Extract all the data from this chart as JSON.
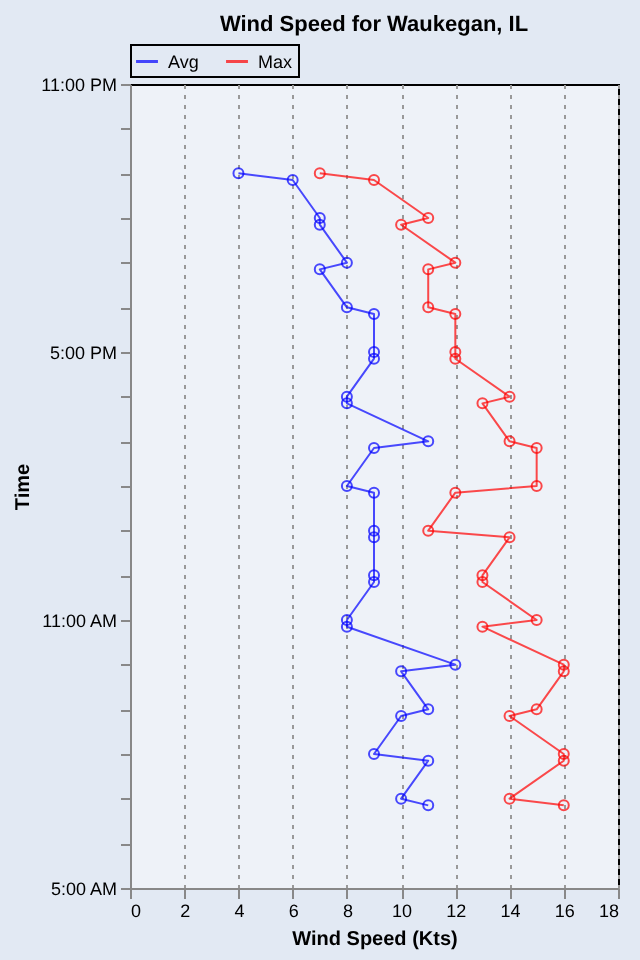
{
  "chart_data": {
    "type": "line",
    "title": "Wind Speed for Waukegan, IL",
    "xlabel": "Wind Speed (Kts)",
    "ylabel": "Time",
    "series": [
      {
        "name": "Avg",
        "color": "#0000ff",
        "x": [
          4,
          6,
          7,
          7,
          8,
          7,
          8,
          9,
          9,
          9,
          8,
          8,
          11,
          9,
          8,
          9,
          9,
          9,
          9,
          9,
          8,
          8,
          12,
          10,
          11,
          10,
          9,
          11,
          10,
          11
        ],
        "values": [
          21.0,
          20.85,
          20.0,
          19.85,
          19.0,
          18.85,
          18.0,
          17.85,
          17.0,
          16.85,
          16.0,
          15.85,
          15.0,
          14.85,
          14.0,
          13.85,
          13.0,
          12.85,
          12.0,
          11.85,
          11.0,
          10.85,
          10.0,
          9.85,
          9.0,
          8.85,
          8.0,
          7.85,
          7.0,
          6.85
        ]
      },
      {
        "name": "Max",
        "color": "#ff0000",
        "x": [
          7,
          9,
          11,
          10,
          12,
          11,
          11,
          12,
          12,
          12,
          14,
          13,
          14,
          15,
          15,
          12,
          11,
          14,
          13,
          13,
          15,
          13,
          16,
          16,
          15,
          14,
          16,
          16,
          14,
          16
        ],
        "values": [
          21.0,
          20.85,
          20.0,
          19.85,
          19.0,
          18.85,
          18.0,
          17.85,
          17.0,
          16.85,
          16.0,
          15.85,
          15.0,
          14.85,
          14.0,
          13.85,
          13.0,
          12.85,
          12.0,
          11.85,
          11.0,
          10.85,
          10.0,
          9.85,
          9.0,
          8.85,
          8.0,
          7.85,
          7.0,
          6.85
        ]
      }
    ],
    "xlim": [
      0,
      18
    ],
    "xticks": [
      0,
      2,
      4,
      6,
      8,
      10,
      12,
      14,
      16,
      18
    ],
    "ylim": [
      5,
      23
    ],
    "yticks": [
      {
        "value": 5,
        "label": "5:00 AM"
      },
      {
        "value": 6,
        "label": null
      },
      {
        "value": 7,
        "label": null
      },
      {
        "value": 8,
        "label": null
      },
      {
        "value": 9,
        "label": null
      },
      {
        "value": 10,
        "label": null
      },
      {
        "value": 11,
        "label": "11:00 AM"
      },
      {
        "value": 12,
        "label": null
      },
      {
        "value": 13,
        "label": null
      },
      {
        "value": 14,
        "label": null
      },
      {
        "value": 15,
        "label": null
      },
      {
        "value": 16,
        "label": null
      },
      {
        "value": 17,
        "label": "5:00 PM"
      },
      {
        "value": 18,
        "label": null
      },
      {
        "value": 19,
        "label": null
      },
      {
        "value": 20,
        "label": null
      },
      {
        "value": 21,
        "label": null
      },
      {
        "value": 22,
        "label": null
      },
      {
        "value": 23,
        "label": "11:00 PM"
      }
    ],
    "grid": "x",
    "legend": "top left",
    "marker": "circle",
    "line_style": "solid"
  }
}
